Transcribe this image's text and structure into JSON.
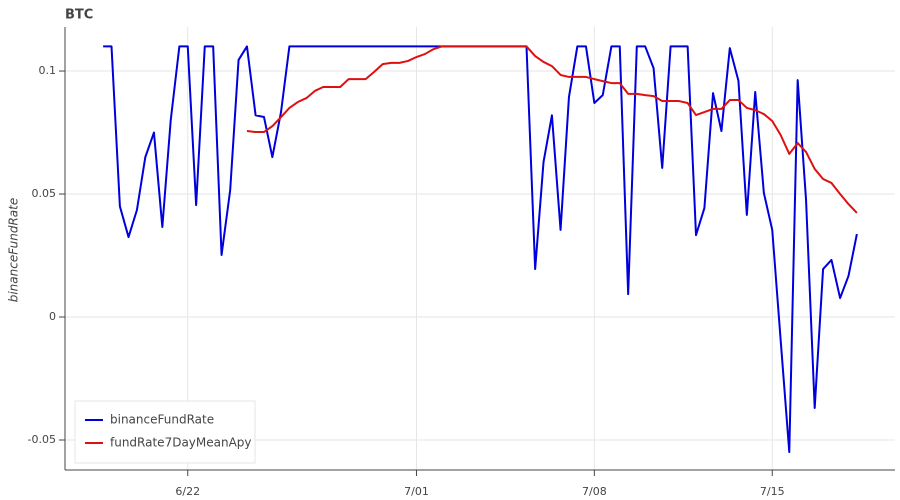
{
  "chart_data": {
    "type": "line",
    "title": "BTC",
    "y_label": "binanceFundRate",
    "x": [
      17.67,
      18,
      18.33,
      18.67,
      19,
      19.33,
      19.67,
      20,
      20.33,
      20.67,
      21,
      21.33,
      21.67,
      22,
      22.33,
      22.67,
      23,
      23.33,
      23.67,
      24,
      24.33,
      24.67,
      25,
      25.33,
      25.67,
      26,
      26.33,
      26.67,
      27,
      27.33,
      27.67,
      28,
      28.33,
      28.67,
      29,
      29.33,
      29.67,
      30,
      30.33,
      30.67,
      31,
      31.33,
      31.67,
      32,
      32.33,
      32.67,
      33,
      33.33,
      33.67,
      34,
      34.33,
      34.67,
      35,
      35.33,
      35.67,
      36,
      36.33,
      36.67,
      37,
      37.33,
      37.67,
      38,
      38.33,
      38.67,
      39,
      39.33,
      39.67,
      40,
      40.33,
      40.67,
      41,
      41.33,
      41.67,
      42,
      42.33,
      42.67,
      43,
      43.33,
      43.67,
      44,
      44.33,
      44.67,
      45,
      45.33,
      45.67,
      46,
      46.33,
      46.67,
      47,
      47.33
    ],
    "series": [
      {
        "name": "binanceFundRate",
        "color": "#0000dd",
        "values": [
          0.11,
          0.11,
          0.045,
          0.0325,
          0.0435,
          0.065,
          0.075,
          0.0366,
          0.08,
          0.11,
          0.11,
          0.0455,
          0.11,
          0.11,
          0.0252,
          0.0516,
          0.1045,
          0.11,
          0.082,
          0.0813,
          0.065,
          0.0833,
          0.11,
          0.11,
          0.11,
          0.11,
          0.11,
          0.11,
          0.11,
          0.11,
          0.11,
          0.11,
          0.11,
          0.11,
          0.11,
          0.11,
          0.11,
          0.11,
          0.11,
          0.11,
          0.11,
          0.11,
          0.11,
          0.11,
          0.11,
          0.11,
          0.11,
          0.11,
          0.11,
          0.11,
          0.11,
          0.0195,
          0.063,
          0.082,
          0.0354,
          0.0894,
          0.11,
          0.11,
          0.087,
          0.0902,
          0.11,
          0.11,
          0.0093,
          0.11,
          0.11,
          0.1012,
          0.0606,
          0.11,
          0.11,
          0.11,
          0.0333,
          0.0443,
          0.091,
          0.0756,
          0.1093,
          0.096,
          0.0415,
          0.0915,
          0.0504,
          0.0354,
          -0.0093,
          -0.0549,
          0.0963,
          0.0476,
          -0.037,
          0.0195,
          0.0232,
          0.0077,
          0.0167,
          0.0337
        ]
      },
      {
        "name": "fundRate7DayMeanApy",
        "color": "#dd1111",
        "values": [
          null,
          null,
          null,
          null,
          null,
          null,
          null,
          null,
          null,
          null,
          null,
          null,
          null,
          null,
          null,
          null,
          null,
          0.0756,
          0.0752,
          0.0752,
          0.0776,
          0.0813,
          0.085,
          0.0874,
          0.089,
          0.0919,
          0.0935,
          0.0935,
          0.0935,
          0.0967,
          0.0967,
          0.0967,
          0.0996,
          0.1028,
          0.1033,
          0.1033,
          0.1041,
          0.1057,
          0.1069,
          0.1089,
          0.11,
          0.11,
          0.11,
          0.11,
          0.11,
          0.11,
          0.11,
          0.11,
          0.11,
          0.11,
          0.11,
          0.1061,
          0.1037,
          0.102,
          0.0984,
          0.0976,
          0.0976,
          0.0976,
          0.0967,
          0.0959,
          0.0951,
          0.0951,
          0.0907,
          0.0907,
          0.0902,
          0.0898,
          0.0878,
          0.0878,
          0.0878,
          0.087,
          0.0821,
          0.0833,
          0.0846,
          0.0846,
          0.0882,
          0.0882,
          0.085,
          0.0841,
          0.0825,
          0.0797,
          0.074,
          0.0663,
          0.0707,
          0.0671,
          0.0602,
          0.0561,
          0.0545,
          0.05,
          0.0459,
          0.0423
        ]
      }
    ],
    "xlim": [
      16.17,
      48.83
    ],
    "xticks": [
      {
        "value": 21,
        "label": "6/22"
      },
      {
        "value": 30,
        "label": "7/01"
      },
      {
        "value": 37,
        "label": "7/08"
      },
      {
        "value": 44,
        "label": "7/15"
      }
    ],
    "ylim": [
      -0.0622,
      0.1179
    ],
    "yticks": [
      -0.05,
      0,
      0.05,
      0.1
    ],
    "grid": true,
    "legend": "bottom_left"
  }
}
